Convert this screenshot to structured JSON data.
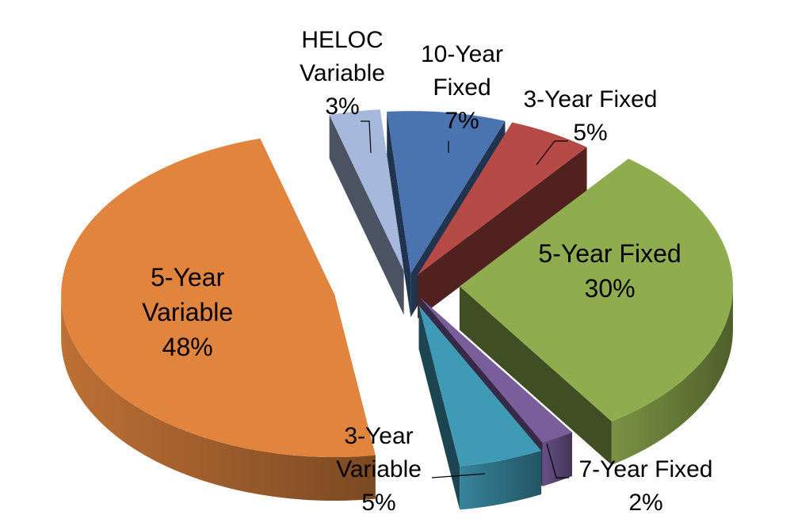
{
  "chart_data": {
    "type": "pie",
    "variant": "3d-exploded",
    "legend": "none",
    "slices": [
      {
        "name": "10-Year Fixed",
        "value": 7,
        "label_lines": [
          "10-Year",
          "Fixed"
        ],
        "value_label": "7%",
        "color": "#4a74b0"
      },
      {
        "name": "3-Year Fixed",
        "value": 5,
        "label_lines": [
          "3-Year Fixed"
        ],
        "value_label": "5%",
        "color": "#b54a47"
      },
      {
        "name": "5-Year Fixed",
        "value": 30,
        "label_lines": [
          "5-Year Fixed"
        ],
        "value_label": "30%",
        "color": "#8fad4f"
      },
      {
        "name": "7-Year Fixed",
        "value": 2,
        "label_lines": [
          "7-Year Fixed"
        ],
        "value_label": "2%",
        "color": "#7a5e9c"
      },
      {
        "name": "3-Year Variable",
        "value": 5,
        "label_lines": [
          "3-Year",
          "Variable"
        ],
        "value_label": "5%",
        "color": "#3f9ab5"
      },
      {
        "name": "5-Year Variable",
        "value": 48,
        "label_lines": [
          "5-Year",
          "Variable"
        ],
        "value_label": "48%",
        "color": "#e0843e"
      },
      {
        "name": "HELOC Variable",
        "value": 3,
        "label_lines": [
          "HELOC",
          "Variable"
        ],
        "value_label": "3%",
        "color": "#a6b8dc"
      }
    ]
  }
}
